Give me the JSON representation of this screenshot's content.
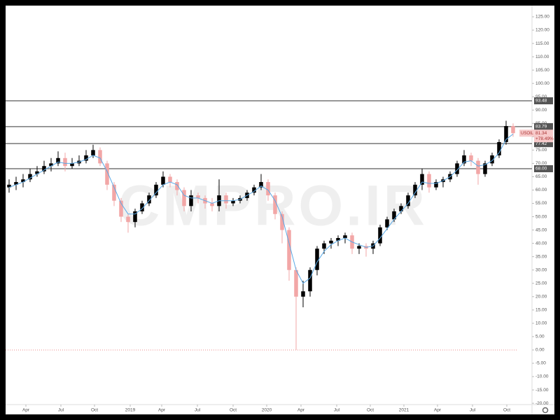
{
  "chart_data": {
    "type": "candlestick",
    "watermark": "CMPRO.IR",
    "symbol": "USOIL",
    "last_change": "+78.49%",
    "up_color": "#000000",
    "down_color": "#f2a6a6",
    "open": [
      61,
      62,
      63,
      64,
      66,
      67,
      69,
      70,
      72,
      69,
      70,
      71,
      73,
      75,
      70,
      62,
      56,
      50,
      48,
      52,
      55,
      58,
      62,
      65,
      63,
      60,
      54,
      58,
      57,
      55,
      54,
      58,
      55,
      56,
      57,
      59,
      61,
      63,
      58,
      51,
      45,
      30,
      20,
      22,
      30,
      38,
      40,
      41,
      42,
      43,
      38,
      39,
      38,
      40,
      46,
      49,
      52,
      54,
      58,
      62,
      66,
      61,
      63,
      64,
      66,
      70,
      73,
      71,
      66,
      70,
      73,
      78,
      84
    ],
    "high": [
      64,
      65,
      66,
      68,
      69,
      71,
      72,
      74.5,
      74,
      72,
      73,
      75,
      77,
      76,
      71,
      63,
      57,
      51,
      53,
      56,
      59,
      63,
      67,
      66,
      64,
      61,
      60,
      59,
      58,
      57,
      64,
      59,
      57,
      58,
      60,
      62,
      66,
      64,
      59,
      52,
      46,
      31,
      26,
      31,
      39,
      41,
      42,
      43,
      44,
      44,
      40,
      40,
      41,
      47,
      50,
      53,
      55,
      59,
      63,
      68,
      67,
      64,
      65,
      67,
      71,
      75,
      74,
      72,
      71,
      74,
      79,
      86,
      85
    ],
    "low": [
      59,
      60,
      61,
      63,
      65,
      66,
      67,
      69,
      67,
      68,
      69,
      70,
      72,
      69,
      60,
      54,
      48,
      44,
      46,
      51,
      54,
      57,
      61,
      61,
      58,
      52,
      52,
      55,
      53,
      52,
      52,
      53,
      54,
      55,
      56,
      58,
      60,
      56,
      49,
      40,
      26,
      0,
      16,
      20,
      28,
      36,
      38,
      39,
      40,
      36,
      36,
      35,
      36,
      39,
      45,
      48,
      51,
      53,
      57,
      60,
      59,
      60,
      61,
      63,
      65,
      69,
      69,
      62,
      65,
      69,
      72,
      77,
      80
    ],
    "close": [
      62,
      63,
      64,
      66,
      67,
      69,
      70,
      72,
      69,
      70,
      71,
      73,
      75,
      70,
      62,
      56,
      50,
      48,
      52,
      55,
      58,
      62,
      65,
      63,
      60,
      54,
      58,
      57,
      55,
      54,
      58,
      55,
      56,
      57,
      59,
      61,
      63,
      58,
      51,
      45,
      30,
      20,
      22,
      30,
      38,
      40,
      41,
      42,
      43,
      38,
      39,
      38,
      40,
      46,
      49,
      52,
      54,
      58,
      62,
      66,
      61,
      63,
      64,
      66,
      70,
      73,
      71,
      66,
      70,
      73,
      78,
      84,
      81.34
    ],
    "ma": {
      "color": "#5aa9e6",
      "values": [
        61,
        62,
        63,
        64.5,
        66,
        67.5,
        69,
        70.5,
        70,
        70,
        70.5,
        71.5,
        73,
        72,
        67,
        61,
        55,
        51,
        51,
        53,
        56,
        59,
        62,
        63,
        62,
        58,
        57,
        57,
        56,
        55,
        56,
        56,
        56,
        56.5,
        58,
        59.5,
        61.5,
        60,
        56,
        50,
        40,
        30,
        25,
        27,
        33,
        37,
        39.5,
        41,
        42,
        40.5,
        39.5,
        38.5,
        39,
        42,
        45.5,
        49,
        52,
        55,
        59,
        63,
        62.5,
        62.5,
        63.5,
        65,
        67.5,
        70.5,
        71,
        69,
        69.5,
        71,
        74,
        79,
        81
      ]
    },
    "levels": [
      93.48,
      83.79,
      77.42,
      {
        "value": 68,
        "label": "68.00"
      }
    ],
    "xlim": [
      -0.5,
      74.7
    ],
    "xticks": [
      {
        "value": 2.4,
        "label": "Apr"
      },
      {
        "value": 7.4,
        "label": "Jul"
      },
      {
        "value": 12.2,
        "label": "Oct"
      },
      {
        "value": 17.3,
        "label": "2019"
      },
      {
        "value": 21.8,
        "label": "Apr"
      },
      {
        "value": 26.9,
        "label": "Jul"
      },
      {
        "value": 32,
        "label": "Oct"
      },
      {
        "value": 36.8,
        "label": "2020"
      },
      {
        "value": 41.7,
        "label": "Apr"
      },
      {
        "value": 46.8,
        "label": "Jul"
      },
      {
        "value": 51.6,
        "label": "Oct"
      },
      {
        "value": 56.4,
        "label": "2021"
      },
      {
        "value": 61.2,
        "label": "Apr"
      },
      {
        "value": 66.2,
        "label": "Jul"
      },
      {
        "value": 71.1,
        "label": "Oct"
      }
    ],
    "ylim": [
      -20.5,
      129.2
    ],
    "yticks": [
      {
        "value": 125,
        "label": "125.00"
      },
      {
        "value": 120,
        "label": "120.00"
      },
      {
        "value": 115,
        "label": "115.00"
      },
      {
        "value": 110,
        "label": "110.00"
      },
      {
        "value": 105,
        "label": "105.00"
      },
      {
        "value": 100,
        "label": "100.00"
      },
      {
        "value": 95,
        "label": "95.00"
      },
      {
        "value": 90,
        "label": "90.00"
      },
      {
        "value": 85,
        "label": "85.00"
      },
      {
        "value": 80,
        "label": "80.00"
      },
      {
        "value": 75,
        "label": "75.00"
      },
      {
        "value": 70,
        "label": "70.00"
      },
      {
        "value": 65,
        "label": "65.00"
      },
      {
        "value": 60,
        "label": "60.00"
      },
      {
        "value": 55,
        "label": "55.00"
      },
      {
        "value": 50,
        "label": "50.00"
      },
      {
        "value": 45,
        "label": "45.00"
      },
      {
        "value": 40,
        "label": "40.00"
      },
      {
        "value": 35,
        "label": "35.00"
      },
      {
        "value": 30,
        "label": "30.00"
      },
      {
        "value": 25,
        "label": "25.00"
      },
      {
        "value": 20,
        "label": "20.00"
      },
      {
        "value": 15,
        "label": "15.00"
      },
      {
        "value": 10,
        "label": "10.00"
      },
      {
        "value": 5,
        "label": "5.00"
      },
      {
        "value": 0,
        "label": "0.00"
      },
      {
        "value": -5,
        "label": "-5.00"
      },
      {
        "value": -10,
        "label": "-10.00"
      },
      {
        "value": -15,
        "label": "-15.00"
      },
      {
        "value": -20,
        "label": "-20.00"
      }
    ]
  }
}
